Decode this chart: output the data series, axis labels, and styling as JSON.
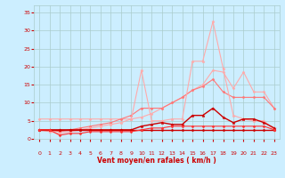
{
  "x": [
    0,
    1,
    2,
    3,
    4,
    5,
    6,
    7,
    8,
    9,
    10,
    11,
    12,
    13,
    14,
    15,
    16,
    17,
    18,
    19,
    20,
    21,
    22,
    23
  ],
  "series": [
    {
      "name": "line1_light",
      "color": "#ffaaaa",
      "lw": 0.8,
      "marker": "D",
      "markersize": 1.5,
      "y": [
        5.5,
        5.5,
        5.5,
        5.5,
        5.5,
        5.5,
        5.5,
        5.5,
        5.5,
        5.5,
        6.0,
        7.0,
        8.5,
        10.0,
        11.5,
        13.5,
        15.0,
        19.0,
        18.5,
        14.0,
        18.5,
        13.0,
        13.0,
        8.5
      ]
    },
    {
      "name": "line2_medium",
      "color": "#ff7777",
      "lw": 0.8,
      "marker": "D",
      "markersize": 1.5,
      "y": [
        2.5,
        2.5,
        2.0,
        2.5,
        3.0,
        3.5,
        4.0,
        4.5,
        5.5,
        6.5,
        8.5,
        8.5,
        8.5,
        10.0,
        11.5,
        13.5,
        14.5,
        16.5,
        13.0,
        11.5,
        11.5,
        11.5,
        11.5,
        8.5
      ]
    },
    {
      "name": "line3_star_light",
      "color": "#ffaaaa",
      "lw": 0.8,
      "marker": "*",
      "markersize": 2.5,
      "y": [
        2.5,
        2.0,
        1.5,
        2.0,
        2.5,
        3.0,
        3.5,
        4.0,
        4.5,
        5.5,
        19.0,
        5.0,
        5.0,
        5.5,
        5.5,
        21.5,
        21.5,
        32.5,
        19.5,
        6.5,
        5.5,
        5.0,
        5.0,
        2.5
      ]
    },
    {
      "name": "line4_dark_star",
      "color": "#cc0000",
      "lw": 1.0,
      "marker": "*",
      "markersize": 2.5,
      "y": [
        2.5,
        2.5,
        2.5,
        2.5,
        2.5,
        2.5,
        2.5,
        2.5,
        2.5,
        2.5,
        3.5,
        4.0,
        4.5,
        4.0,
        4.0,
        6.5,
        6.5,
        8.5,
        6.0,
        4.5,
        5.5,
        5.5,
        4.5,
        3.0
      ]
    },
    {
      "name": "line5_flat",
      "color": "#cc0000",
      "lw": 1.0,
      "marker": "D",
      "markersize": 1.5,
      "y": [
        2.5,
        2.5,
        2.5,
        2.5,
        2.5,
        2.5,
        2.5,
        2.5,
        2.5,
        2.5,
        2.5,
        2.5,
        2.5,
        2.5,
        2.5,
        2.5,
        2.5,
        2.5,
        2.5,
        2.5,
        2.5,
        2.5,
        2.5,
        2.5
      ]
    },
    {
      "name": "line6_red",
      "color": "#ff3333",
      "lw": 0.8,
      "marker": "D",
      "markersize": 1.5,
      "y": [
        2.5,
        2.5,
        1.0,
        1.5,
        1.5,
        2.0,
        2.0,
        2.0,
        2.0,
        2.0,
        2.5,
        3.0,
        3.0,
        3.5,
        3.5,
        3.5,
        3.5,
        3.5,
        3.5,
        3.5,
        3.5,
        3.5,
        3.5,
        2.5
      ]
    }
  ],
  "xlim": [
    -0.5,
    23.5
  ],
  "ylim": [
    0,
    37
  ],
  "yticks": [
    0,
    5,
    10,
    15,
    20,
    25,
    30,
    35
  ],
  "xticks": [
    0,
    1,
    2,
    3,
    4,
    5,
    6,
    7,
    8,
    9,
    10,
    11,
    12,
    13,
    14,
    15,
    16,
    17,
    18,
    19,
    20,
    21,
    22,
    23
  ],
  "xlabel": "Vent moyen/en rafales ( km/h )",
  "background_color": "#cceeff",
  "grid_color": "#aacccc",
  "xlabel_color": "#cc0000",
  "tick_color": "#cc0000",
  "wind_arrows": [
    "↓",
    "↗",
    "↗",
    "↗",
    "↗",
    "↗",
    "↗",
    "↗",
    "↓",
    "↖",
    "←",
    "↓",
    "↓",
    "↖",
    "↗",
    "↘",
    "↑",
    "↓",
    "↗",
    "→",
    "↓",
    "↓",
    "↓",
    "↓"
  ]
}
